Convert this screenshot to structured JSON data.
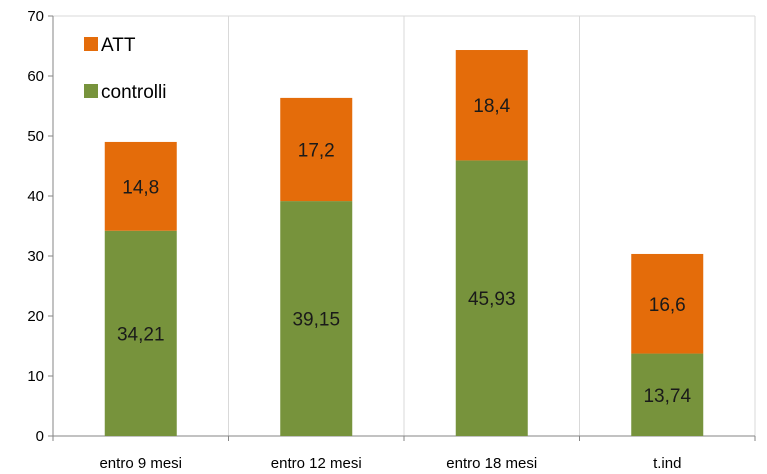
{
  "chart_data": {
    "type": "bar",
    "stacked": true,
    "categories": [
      "entro 9 mesi",
      "entro 12 mesi",
      "entro 18 mesi",
      "t.ind"
    ],
    "series": [
      {
        "name": "controlli",
        "values": [
          34.21,
          39.15,
          45.93,
          13.74
        ],
        "labels": [
          "34,21",
          "39,15",
          "45,93",
          "13,74"
        ],
        "color": "#77933c"
      },
      {
        "name": "ATT",
        "values": [
          14.8,
          17.2,
          18.4,
          16.6
        ],
        "labels": [
          "14,8",
          "17,2",
          "18,4",
          "16,6"
        ],
        "color": "#e46c0a"
      }
    ],
    "legend": {
      "position": "top-left",
      "order": [
        "ATT",
        "controlli"
      ]
    },
    "ylim": [
      0,
      70
    ],
    "yticks": [
      0,
      10,
      20,
      30,
      40,
      50,
      60,
      70
    ],
    "grid": {
      "vertical": true,
      "horizontal": false
    },
    "title": "",
    "xlabel": "",
    "ylabel": ""
  }
}
